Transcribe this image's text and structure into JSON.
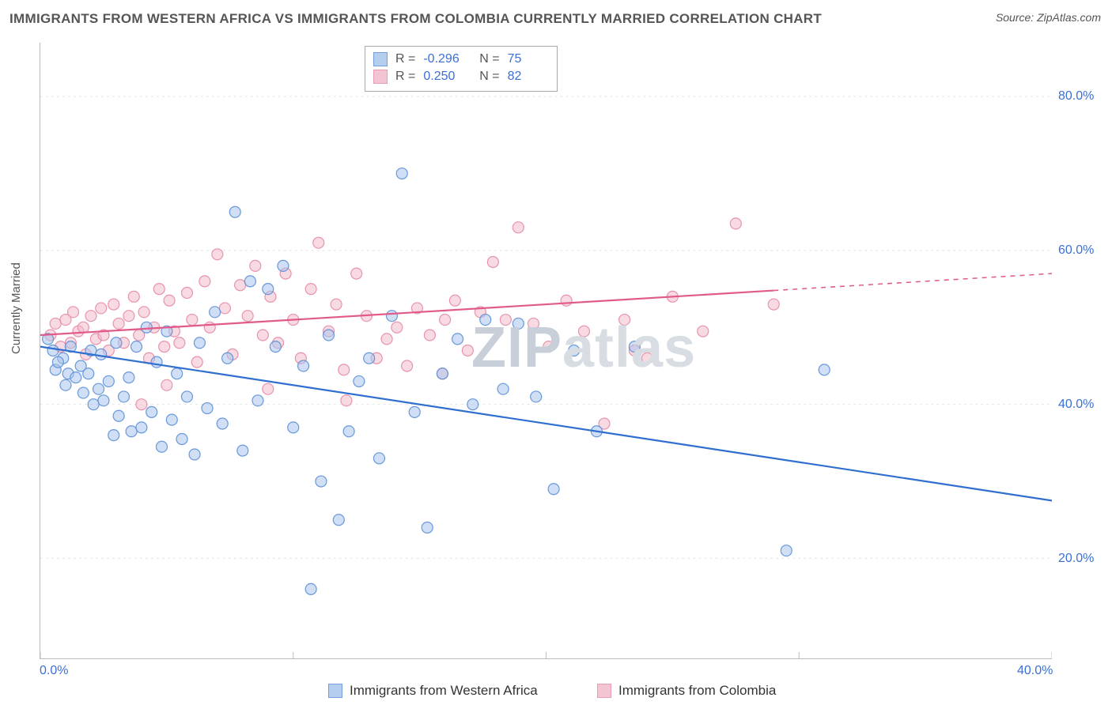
{
  "title": "IMMIGRANTS FROM WESTERN AFRICA VS IMMIGRANTS FROM COLOMBIA CURRENTLY MARRIED CORRELATION CHART",
  "source": "Source: ZipAtlas.com",
  "ylabel": "Currently Married",
  "watermark_a": "ZIP",
  "watermark_b": "atlas",
  "chart": {
    "type": "scatter",
    "background_color": "#ffffff",
    "grid_color": "#e4e4e4",
    "axis_color": "#bbbbbb",
    "xlim": [
      0,
      40
    ],
    "ylim": [
      7,
      87
    ],
    "xticks": [
      0,
      10,
      20,
      30,
      40
    ],
    "xtick_labels": [
      "0.0%",
      "",
      "",
      "",
      "40.0%"
    ],
    "yticks": [
      20,
      40,
      60,
      80
    ],
    "ytick_labels": [
      "20.0%",
      "40.0%",
      "60.0%",
      "80.0%"
    ],
    "ytick_fontsize": 16,
    "xtick_fontsize": 16,
    "tick_color": "#3b6fd8",
    "marker_radius": 7,
    "marker_opacity": 0.55,
    "line_width": 2.2,
    "series": [
      {
        "name": "Immigrants from Western Africa",
        "swatch_fill": "#a9c5ec",
        "swatch_stroke": "#5a8fd6",
        "marker_fill": "#a9c5ec",
        "marker_stroke": "#5a8fd6",
        "line_color": "#2f6fd0",
        "R": "-0.296",
        "N": "75",
        "trend": {
          "x1": 0,
          "y1": 47.5,
          "x2": 40,
          "y2": 27.5,
          "dash_after_x": 40
        },
        "points": [
          [
            0.3,
            48.5
          ],
          [
            0.5,
            47.0
          ],
          [
            0.6,
            44.5
          ],
          [
            0.9,
            46.0
          ],
          [
            0.7,
            45.5
          ],
          [
            1.1,
            44.0
          ],
          [
            1.2,
            47.5
          ],
          [
            1.4,
            43.5
          ],
          [
            1.0,
            42.5
          ],
          [
            1.6,
            45.0
          ],
          [
            1.7,
            41.5
          ],
          [
            1.9,
            44.0
          ],
          [
            2.1,
            40.0
          ],
          [
            2.0,
            47.0
          ],
          [
            2.3,
            42.0
          ],
          [
            2.5,
            40.5
          ],
          [
            2.4,
            46.5
          ],
          [
            2.7,
            43.0
          ],
          [
            2.9,
            36.0
          ],
          [
            3.0,
            48.0
          ],
          [
            3.1,
            38.5
          ],
          [
            3.3,
            41.0
          ],
          [
            3.5,
            43.5
          ],
          [
            3.6,
            36.5
          ],
          [
            3.8,
            47.5
          ],
          [
            4.0,
            37.0
          ],
          [
            4.2,
            50.0
          ],
          [
            4.4,
            39.0
          ],
          [
            4.6,
            45.5
          ],
          [
            4.8,
            34.5
          ],
          [
            5.0,
            49.5
          ],
          [
            5.2,
            38.0
          ],
          [
            5.4,
            44.0
          ],
          [
            5.6,
            35.5
          ],
          [
            5.8,
            41.0
          ],
          [
            6.1,
            33.5
          ],
          [
            6.3,
            48.0
          ],
          [
            6.6,
            39.5
          ],
          [
            6.9,
            52.0
          ],
          [
            7.2,
            37.5
          ],
          [
            7.4,
            46.0
          ],
          [
            7.7,
            65.0
          ],
          [
            8.0,
            34.0
          ],
          [
            8.3,
            56.0
          ],
          [
            8.6,
            40.5
          ],
          [
            9.0,
            55.0
          ],
          [
            9.3,
            47.5
          ],
          [
            9.6,
            58.0
          ],
          [
            10.0,
            37.0
          ],
          [
            10.4,
            45.0
          ],
          [
            10.7,
            16.0
          ],
          [
            11.1,
            30.0
          ],
          [
            11.4,
            49.0
          ],
          [
            11.8,
            25.0
          ],
          [
            12.2,
            36.5
          ],
          [
            12.6,
            43.0
          ],
          [
            13.0,
            46.0
          ],
          [
            13.4,
            33.0
          ],
          [
            13.9,
            51.5
          ],
          [
            14.3,
            70.0
          ],
          [
            14.8,
            39.0
          ],
          [
            15.3,
            24.0
          ],
          [
            15.9,
            44.0
          ],
          [
            16.5,
            48.5
          ],
          [
            17.1,
            40.0
          ],
          [
            17.6,
            51.0
          ],
          [
            18.3,
            42.0
          ],
          [
            18.9,
            50.5
          ],
          [
            19.6,
            41.0
          ],
          [
            20.3,
            29.0
          ],
          [
            21.1,
            47.0
          ],
          [
            22.0,
            36.5
          ],
          [
            29.5,
            21.0
          ],
          [
            31.0,
            44.5
          ],
          [
            23.5,
            47.5
          ]
        ]
      },
      {
        "name": "Immigrants from Colombia",
        "swatch_fill": "#f2bccb",
        "swatch_stroke": "#e48aa4",
        "marker_fill": "#f2bccb",
        "marker_stroke": "#e48aa4",
        "line_color": "#e15b8a",
        "R": "0.250",
        "N": "82",
        "trend": {
          "x1": 0,
          "y1": 49.0,
          "x2": 40,
          "y2": 57.0,
          "dash_after_x": 29
        },
        "points": [
          [
            0.4,
            49.0
          ],
          [
            0.6,
            50.5
          ],
          [
            0.8,
            47.5
          ],
          [
            1.0,
            51.0
          ],
          [
            1.2,
            48.0
          ],
          [
            1.3,
            52.0
          ],
          [
            1.5,
            49.5
          ],
          [
            1.7,
            50.0
          ],
          [
            1.8,
            46.5
          ],
          [
            2.0,
            51.5
          ],
          [
            2.2,
            48.5
          ],
          [
            2.4,
            52.5
          ],
          [
            2.5,
            49.0
          ],
          [
            2.7,
            47.0
          ],
          [
            2.9,
            53.0
          ],
          [
            3.1,
            50.5
          ],
          [
            3.3,
            48.0
          ],
          [
            3.5,
            51.5
          ],
          [
            3.7,
            54.0
          ],
          [
            3.9,
            49.0
          ],
          [
            4.1,
            52.0
          ],
          [
            4.3,
            46.0
          ],
          [
            4.5,
            50.0
          ],
          [
            4.7,
            55.0
          ],
          [
            4.9,
            47.5
          ],
          [
            5.1,
            53.5
          ],
          [
            5.3,
            49.5
          ],
          [
            5.5,
            48.0
          ],
          [
            5.8,
            54.5
          ],
          [
            6.0,
            51.0
          ],
          [
            6.2,
            45.5
          ],
          [
            6.5,
            56.0
          ],
          [
            6.7,
            50.0
          ],
          [
            7.0,
            59.5
          ],
          [
            7.3,
            52.5
          ],
          [
            7.6,
            46.5
          ],
          [
            7.9,
            55.5
          ],
          [
            8.2,
            51.5
          ],
          [
            8.5,
            58.0
          ],
          [
            8.8,
            49.0
          ],
          [
            9.1,
            54.0
          ],
          [
            9.4,
            48.0
          ],
          [
            9.7,
            57.0
          ],
          [
            10.0,
            51.0
          ],
          [
            10.3,
            46.0
          ],
          [
            10.7,
            55.0
          ],
          [
            11.0,
            61.0
          ],
          [
            11.4,
            49.5
          ],
          [
            11.7,
            53.0
          ],
          [
            12.1,
            40.5
          ],
          [
            12.5,
            57.0
          ],
          [
            12.9,
            51.5
          ],
          [
            13.3,
            46.0
          ],
          [
            13.7,
            48.5
          ],
          [
            14.1,
            50.0
          ],
          [
            14.5,
            45.0
          ],
          [
            14.9,
            52.5
          ],
          [
            15.4,
            49.0
          ],
          [
            15.9,
            44.0
          ],
          [
            16.4,
            53.5
          ],
          [
            16.9,
            47.0
          ],
          [
            17.4,
            52.0
          ],
          [
            17.9,
            58.5
          ],
          [
            18.4,
            51.0
          ],
          [
            18.9,
            63.0
          ],
          [
            19.5,
            50.5
          ],
          [
            20.1,
            47.5
          ],
          [
            20.8,
            53.5
          ],
          [
            21.5,
            49.5
          ],
          [
            22.3,
            37.5
          ],
          [
            23.1,
            51.0
          ],
          [
            24.0,
            46.0
          ],
          [
            25.0,
            54.0
          ],
          [
            26.2,
            49.5
          ],
          [
            27.5,
            63.5
          ],
          [
            29.0,
            53.0
          ],
          [
            23.5,
            47.0
          ],
          [
            9.0,
            42.0
          ],
          [
            12.0,
            44.5
          ],
          [
            16.0,
            51.0
          ],
          [
            4.0,
            40.0
          ],
          [
            5.0,
            42.5
          ]
        ]
      }
    ]
  },
  "bottom_legend": [
    {
      "label": "Immigrants from Western Africa",
      "series_index": 0
    },
    {
      "label": "Immigrants from Colombia",
      "series_index": 1
    }
  ]
}
